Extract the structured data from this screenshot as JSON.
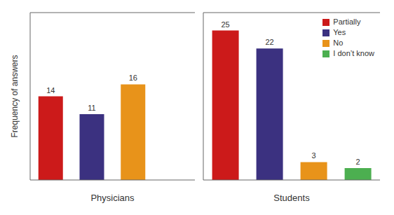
{
  "chart_data": [
    {
      "type": "bar",
      "xlabel": "Physicians",
      "ylabel": "Frequency of answers",
      "categories": [
        "Partially",
        "Yes",
        "No",
        "I don’t know"
      ],
      "values": [
        14,
        11,
        16,
        0
      ],
      "colors": [
        "#cc1a1a",
        "#3b3180",
        "#e8931a",
        "#4caf50"
      ],
      "ylim": [
        0,
        28
      ],
      "tick_labels": false,
      "data_labels": true,
      "grid": false
    },
    {
      "type": "bar",
      "xlabel": "Students",
      "categories": [
        "Partially",
        "Yes",
        "No",
        "I don’t know"
      ],
      "values": [
        25,
        22,
        3,
        2
      ],
      "colors": [
        "#cc1a1a",
        "#3b3180",
        "#e8931a",
        "#4caf50"
      ],
      "ylim": [
        0,
        28
      ],
      "tick_labels": false,
      "data_labels": true,
      "grid": false,
      "legend": "upper right"
    }
  ]
}
